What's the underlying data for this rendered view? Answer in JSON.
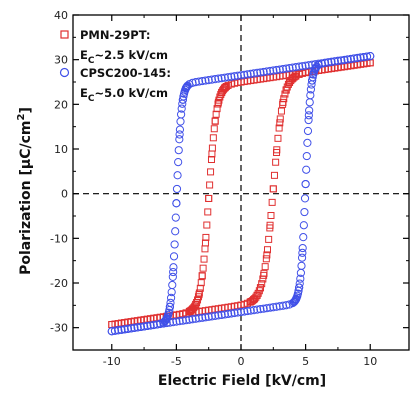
{
  "chart_data": {
    "type": "scatter",
    "xlabel": "Electric Field [kV/cm]",
    "ylabel_main": "Polarization [",
    "ylabel_mu": "μ",
    "ylabel_unit": "C/cm",
    "ylabel_sup": "2",
    "ylabel_close": "]",
    "xlim": [
      -13,
      13
    ],
    "ylim": [
      -35,
      40
    ],
    "x_ticks": [
      -10,
      -5,
      0,
      5,
      10
    ],
    "y_ticks": [
      -30,
      -20,
      -10,
      0,
      10,
      20,
      30,
      40
    ],
    "x_tick_labels": [
      "-10",
      "-5",
      "0",
      "5",
      "10"
    ],
    "y_tick_labels": [
      "-30",
      "-20",
      "-10",
      "0",
      "10",
      "20",
      "30",
      "40"
    ],
    "dashed_zero_lines": true,
    "legend": [
      {
        "name": "PMN-29PT:",
        "sub_prefix": "E",
        "sub": "C",
        "sub_suffix": "~2.5 kV/cm",
        "marker": "square",
        "color": "#e03030"
      },
      {
        "name": "CPSC200-145:",
        "sub_prefix": "E",
        "sub": "C",
        "sub_suffix": "~5.0 kV/cm",
        "marker": "circle",
        "color": "#4050e8"
      }
    ],
    "series": [
      {
        "name": "PMN-29PT:",
        "marker": "square",
        "color": "#e03030",
        "ec": 2.5,
        "ps": 29.3,
        "pr": 25.0,
        "top_params": {
          "s": 0.4,
          "h": -0.1,
          "w": 0.6
        },
        "bottom_params": {
          "s": 0.4,
          "h": 0.1,
          "w": 0.75
        }
      },
      {
        "name": "CPSC200-145:",
        "marker": "circle",
        "color": "#4050e8",
        "ec": 5.0,
        "ps": 30.8,
        "pr": 26.5,
        "top_params": {
          "s": 0.35,
          "h": -0.2,
          "w": 0.38
        },
        "bottom_params": {
          "s": 0.35,
          "h": 0.2,
          "w": 0.38
        }
      }
    ]
  }
}
